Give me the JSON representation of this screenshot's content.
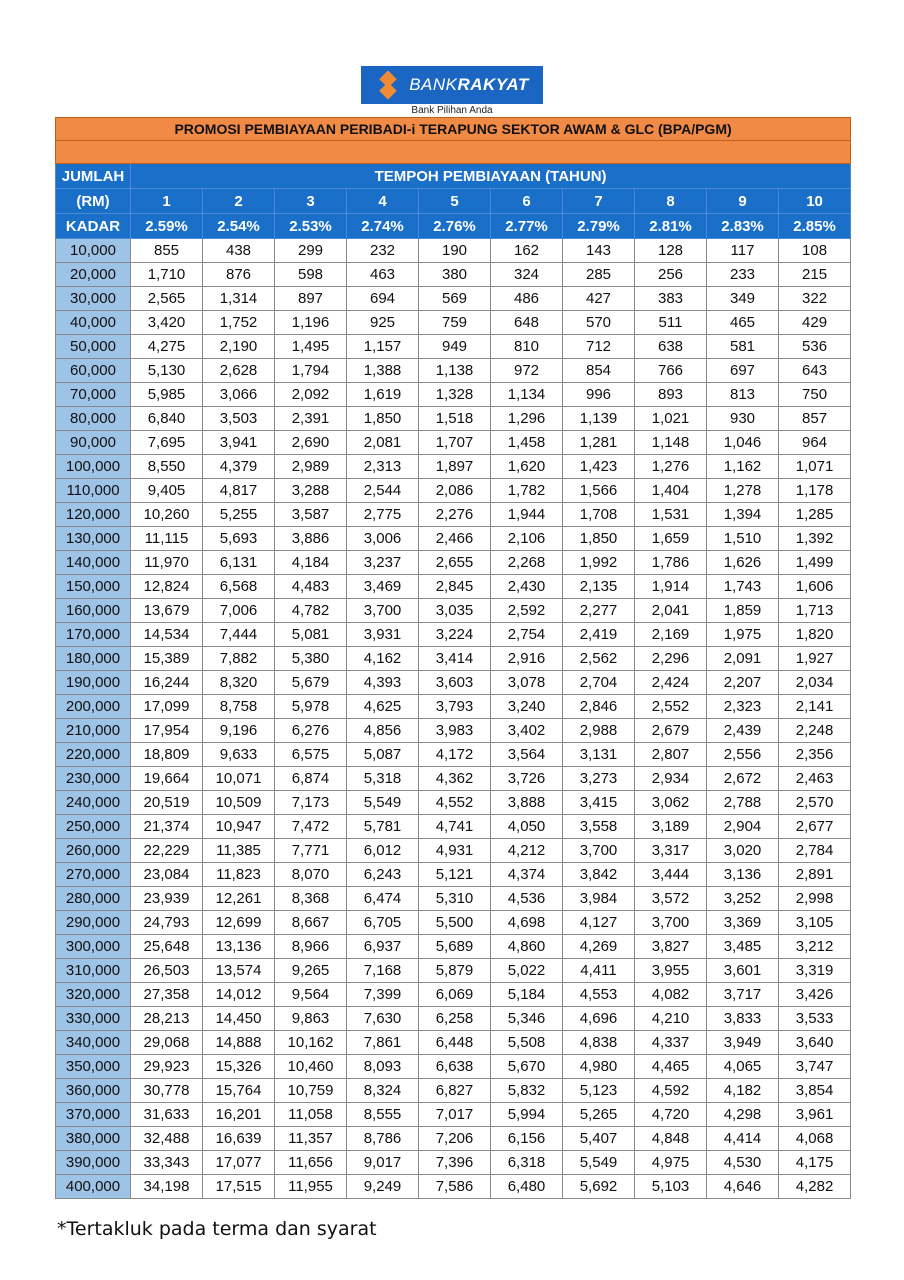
{
  "logo": {
    "brand_light": "BANK",
    "brand_bold": "RAKYAT",
    "tagline": "Bank Pilihan Anda",
    "color": "#1a66c2",
    "accent": "#f08a33"
  },
  "title": "PROMOSI PEMBIAYAAN PERIBADI-i TERAPUNG SEKTOR AWAM & GLC (BPA/PGM)",
  "header": {
    "amount_label_1": "JUMLAH",
    "amount_label_2": "(RM)",
    "tenure_label": "TEMPOH PEMBIAYAAN (TAHUN)",
    "rate_label": "KADAR",
    "years": [
      "1",
      "2",
      "3",
      "4",
      "5",
      "6",
      "7",
      "8",
      "9",
      "10"
    ],
    "rates": [
      "2.59%",
      "2.54%",
      "2.53%",
      "2.74%",
      "2.76%",
      "2.77%",
      "2.79%",
      "2.81%",
      "2.83%",
      "2.85%"
    ]
  },
  "rows": [
    [
      "10,000",
      "855",
      "438",
      "299",
      "232",
      "190",
      "162",
      "143",
      "128",
      "117",
      "108"
    ],
    [
      "20,000",
      "1,710",
      "876",
      "598",
      "463",
      "380",
      "324",
      "285",
      "256",
      "233",
      "215"
    ],
    [
      "30,000",
      "2,565",
      "1,314",
      "897",
      "694",
      "569",
      "486",
      "427",
      "383",
      "349",
      "322"
    ],
    [
      "40,000",
      "3,420",
      "1,752",
      "1,196",
      "925",
      "759",
      "648",
      "570",
      "511",
      "465",
      "429"
    ],
    [
      "50,000",
      "4,275",
      "2,190",
      "1,495",
      "1,157",
      "949",
      "810",
      "712",
      "638",
      "581",
      "536"
    ],
    [
      "60,000",
      "5,130",
      "2,628",
      "1,794",
      "1,388",
      "1,138",
      "972",
      "854",
      "766",
      "697",
      "643"
    ],
    [
      "70,000",
      "5,985",
      "3,066",
      "2,092",
      "1,619",
      "1,328",
      "1,134",
      "996",
      "893",
      "813",
      "750"
    ],
    [
      "80,000",
      "6,840",
      "3,503",
      "2,391",
      "1,850",
      "1,518",
      "1,296",
      "1,139",
      "1,021",
      "930",
      "857"
    ],
    [
      "90,000",
      "7,695",
      "3,941",
      "2,690",
      "2,081",
      "1,707",
      "1,458",
      "1,281",
      "1,148",
      "1,046",
      "964"
    ],
    [
      "100,000",
      "8,550",
      "4,379",
      "2,989",
      "2,313",
      "1,897",
      "1,620",
      "1,423",
      "1,276",
      "1,162",
      "1,071"
    ],
    [
      "110,000",
      "9,405",
      "4,817",
      "3,288",
      "2,544",
      "2,086",
      "1,782",
      "1,566",
      "1,404",
      "1,278",
      "1,178"
    ],
    [
      "120,000",
      "10,260",
      "5,255",
      "3,587",
      "2,775",
      "2,276",
      "1,944",
      "1,708",
      "1,531",
      "1,394",
      "1,285"
    ],
    [
      "130,000",
      "11,115",
      "5,693",
      "3,886",
      "3,006",
      "2,466",
      "2,106",
      "1,850",
      "1,659",
      "1,510",
      "1,392"
    ],
    [
      "140,000",
      "11,970",
      "6,131",
      "4,184",
      "3,237",
      "2,655",
      "2,268",
      "1,992",
      "1,786",
      "1,626",
      "1,499"
    ],
    [
      "150,000",
      "12,824",
      "6,568",
      "4,483",
      "3,469",
      "2,845",
      "2,430",
      "2,135",
      "1,914",
      "1,743",
      "1,606"
    ],
    [
      "160,000",
      "13,679",
      "7,006",
      "4,782",
      "3,700",
      "3,035",
      "2,592",
      "2,277",
      "2,041",
      "1,859",
      "1,713"
    ],
    [
      "170,000",
      "14,534",
      "7,444",
      "5,081",
      "3,931",
      "3,224",
      "2,754",
      "2,419",
      "2,169",
      "1,975",
      "1,820"
    ],
    [
      "180,000",
      "15,389",
      "7,882",
      "5,380",
      "4,162",
      "3,414",
      "2,916",
      "2,562",
      "2,296",
      "2,091",
      "1,927"
    ],
    [
      "190,000",
      "16,244",
      "8,320",
      "5,679",
      "4,393",
      "3,603",
      "3,078",
      "2,704",
      "2,424",
      "2,207",
      "2,034"
    ],
    [
      "200,000",
      "17,099",
      "8,758",
      "5,978",
      "4,625",
      "3,793",
      "3,240",
      "2,846",
      "2,552",
      "2,323",
      "2,141"
    ],
    [
      "210,000",
      "17,954",
      "9,196",
      "6,276",
      "4,856",
      "3,983",
      "3,402",
      "2,988",
      "2,679",
      "2,439",
      "2,248"
    ],
    [
      "220,000",
      "18,809",
      "9,633",
      "6,575",
      "5,087",
      "4,172",
      "3,564",
      "3,131",
      "2,807",
      "2,556",
      "2,356"
    ],
    [
      "230,000",
      "19,664",
      "10,071",
      "6,874",
      "5,318",
      "4,362",
      "3,726",
      "3,273",
      "2,934",
      "2,672",
      "2,463"
    ],
    [
      "240,000",
      "20,519",
      "10,509",
      "7,173",
      "5,549",
      "4,552",
      "3,888",
      "3,415",
      "3,062",
      "2,788",
      "2,570"
    ],
    [
      "250,000",
      "21,374",
      "10,947",
      "7,472",
      "5,781",
      "4,741",
      "4,050",
      "3,558",
      "3,189",
      "2,904",
      "2,677"
    ],
    [
      "260,000",
      "22,229",
      "11,385",
      "7,771",
      "6,012",
      "4,931",
      "4,212",
      "3,700",
      "3,317",
      "3,020",
      "2,784"
    ],
    [
      "270,000",
      "23,084",
      "11,823",
      "8,070",
      "6,243",
      "5,121",
      "4,374",
      "3,842",
      "3,444",
      "3,136",
      "2,891"
    ],
    [
      "280,000",
      "23,939",
      "12,261",
      "8,368",
      "6,474",
      "5,310",
      "4,536",
      "3,984",
      "3,572",
      "3,252",
      "2,998"
    ],
    [
      "290,000",
      "24,793",
      "12,699",
      "8,667",
      "6,705",
      "5,500",
      "4,698",
      "4,127",
      "3,700",
      "3,369",
      "3,105"
    ],
    [
      "300,000",
      "25,648",
      "13,136",
      "8,966",
      "6,937",
      "5,689",
      "4,860",
      "4,269",
      "3,827",
      "3,485",
      "3,212"
    ],
    [
      "310,000",
      "26,503",
      "13,574",
      "9,265",
      "7,168",
      "5,879",
      "5,022",
      "4,411",
      "3,955",
      "3,601",
      "3,319"
    ],
    [
      "320,000",
      "27,358",
      "14,012",
      "9,564",
      "7,399",
      "6,069",
      "5,184",
      "4,553",
      "4,082",
      "3,717",
      "3,426"
    ],
    [
      "330,000",
      "28,213",
      "14,450",
      "9,863",
      "7,630",
      "6,258",
      "5,346",
      "4,696",
      "4,210",
      "3,833",
      "3,533"
    ],
    [
      "340,000",
      "29,068",
      "14,888",
      "10,162",
      "7,861",
      "6,448",
      "5,508",
      "4,838",
      "4,337",
      "3,949",
      "3,640"
    ],
    [
      "350,000",
      "29,923",
      "15,326",
      "10,460",
      "8,093",
      "6,638",
      "5,670",
      "4,980",
      "4,465",
      "4,065",
      "3,747"
    ],
    [
      "360,000",
      "30,778",
      "15,764",
      "10,759",
      "8,324",
      "6,827",
      "5,832",
      "5,123",
      "4,592",
      "4,182",
      "3,854"
    ],
    [
      "370,000",
      "31,633",
      "16,201",
      "11,058",
      "8,555",
      "7,017",
      "5,994",
      "5,265",
      "4,720",
      "4,298",
      "3,961"
    ],
    [
      "380,000",
      "32,488",
      "16,639",
      "11,357",
      "8,786",
      "7,206",
      "6,156",
      "5,407",
      "4,848",
      "4,414",
      "4,068"
    ],
    [
      "390,000",
      "33,343",
      "17,077",
      "11,656",
      "9,017",
      "7,396",
      "6,318",
      "5,549",
      "4,975",
      "4,530",
      "4,175"
    ],
    [
      "400,000",
      "34,198",
      "17,515",
      "11,955",
      "9,249",
      "7,586",
      "6,480",
      "5,692",
      "5,103",
      "4,646",
      "4,282"
    ]
  ],
  "footnote": "*Tertakluk pada terma dan syarat"
}
